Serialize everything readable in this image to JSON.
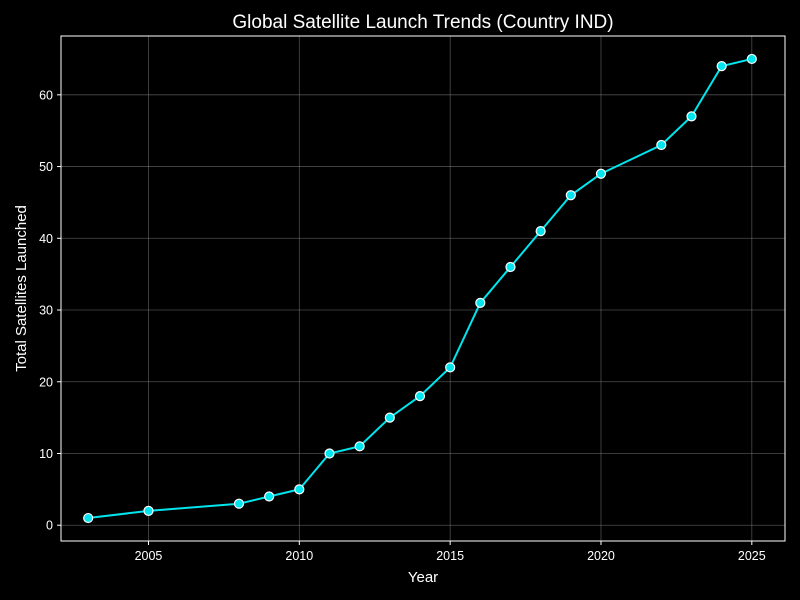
{
  "chart_data": {
    "type": "line",
    "title": "Global Satellite Launch Trends (Country IND)",
    "xlabel": "Year",
    "ylabel": "Total Satellites Launched",
    "xlim": [
      2002.1,
      2026.1
    ],
    "ylim": [
      -2.2,
      68.2
    ],
    "xticks": [
      2005,
      2010,
      2015,
      2020,
      2025
    ],
    "yticks": [
      0,
      10,
      20,
      30,
      40,
      50,
      60
    ],
    "grid": true,
    "colors": {
      "background": "#000000",
      "line": "#00e5ee",
      "marker_edge": "#ffffff"
    },
    "series": [
      {
        "x": [
          2003,
          2005,
          2008,
          2009,
          2010,
          2011,
          2012,
          2013,
          2014,
          2015,
          2016,
          2017,
          2018,
          2019,
          2020,
          2022,
          2023,
          2024,
          2025
        ],
        "y": [
          1,
          2,
          3,
          4,
          5,
          10,
          11,
          15,
          18,
          22,
          31,
          36,
          41,
          46,
          49,
          53,
          57,
          64,
          65
        ]
      }
    ]
  }
}
